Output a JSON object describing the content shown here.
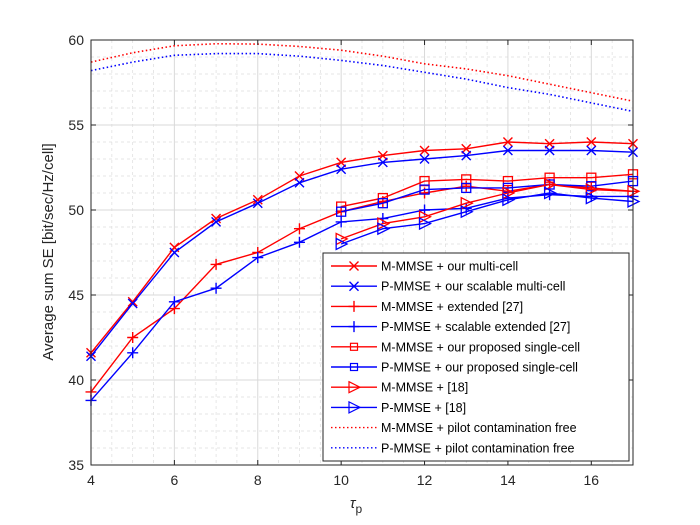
{
  "chart_data": {
    "type": "line",
    "title": "",
    "xlabel": "τ",
    "xlabel_subscript": "p",
    "ylabel": "Average sum SE [bit/sec/Hz/cell]",
    "xlim": [
      4,
      17
    ],
    "ylim": [
      35,
      60
    ],
    "xticks": [
      4,
      6,
      8,
      10,
      12,
      14,
      16
    ],
    "yticks": [
      35,
      40,
      45,
      50,
      55,
      60
    ],
    "grid": true,
    "minor_grid": true,
    "legend_position": "bottom-right",
    "series": [
      {
        "name": "M-MMSE + our multi-cell",
        "color": "#ff0000",
        "marker": "x",
        "linestyle": "solid",
        "x": [
          4,
          5,
          6,
          7,
          8,
          9,
          10,
          11,
          12,
          13,
          14,
          15,
          16,
          17
        ],
        "values": [
          41.6,
          44.6,
          47.8,
          49.5,
          50.6,
          52.0,
          52.8,
          53.2,
          53.5,
          53.6,
          54.0,
          53.9,
          54.0,
          53.9
        ]
      },
      {
        "name": "P-MMSE + our scalable multi-cell",
        "color": "#0000ff",
        "marker": "x",
        "linestyle": "solid",
        "x": [
          4,
          5,
          6,
          7,
          8,
          9,
          10,
          11,
          12,
          13,
          14,
          15,
          16,
          17
        ],
        "values": [
          41.4,
          44.5,
          47.5,
          49.3,
          50.4,
          51.6,
          52.4,
          52.8,
          53.0,
          53.2,
          53.5,
          53.5,
          53.5,
          53.4
        ]
      },
      {
        "name": "M-MMSE + extended [27]",
        "color": "#ff0000",
        "marker": "+",
        "linestyle": "solid",
        "x": [
          4,
          5,
          6,
          7,
          8,
          9,
          10,
          11,
          12,
          13,
          14,
          15,
          16,
          17
        ],
        "values": [
          39.3,
          42.5,
          44.2,
          46.8,
          47.5,
          48.9,
          49.9,
          50.5,
          51.0,
          51.4,
          51.1,
          51.5,
          51.3,
          51.1
        ]
      },
      {
        "name": "P-MMSE + scalable extended [27]",
        "color": "#0000ff",
        "marker": "+",
        "linestyle": "solid",
        "x": [
          4,
          5,
          6,
          7,
          8,
          9,
          10,
          11,
          12,
          13,
          14,
          15,
          16,
          17
        ],
        "values": [
          38.8,
          41.6,
          44.6,
          45.4,
          47.2,
          48.1,
          49.3,
          49.5,
          50.0,
          50.1,
          50.7,
          50.9,
          50.8,
          50.8
        ]
      },
      {
        "name": "M-MMSE + our proposed single-cell",
        "color": "#ff0000",
        "marker": "square",
        "linestyle": "solid",
        "x": [
          10,
          11,
          12,
          13,
          14,
          15,
          16,
          17
        ],
        "values": [
          50.2,
          50.7,
          51.7,
          51.8,
          51.7,
          51.9,
          51.9,
          52.1
        ]
      },
      {
        "name": "P-MMSE + our proposed single-cell",
        "color": "#0000ff",
        "marker": "square",
        "linestyle": "solid",
        "x": [
          10,
          11,
          12,
          13,
          14,
          15,
          16,
          17
        ],
        "values": [
          49.9,
          50.4,
          51.2,
          51.3,
          51.3,
          51.5,
          51.4,
          51.7
        ]
      },
      {
        "name": "M-MMSE + [18]",
        "color": "#ff0000",
        "marker": "triangle-right",
        "linestyle": "solid",
        "x": [
          10,
          11,
          12,
          13,
          14,
          15,
          16,
          17
        ],
        "values": [
          48.3,
          49.2,
          49.6,
          50.4,
          51.0,
          51.5,
          51.2,
          51.1
        ]
      },
      {
        "name": "P-MMSE + [18]",
        "color": "#0000ff",
        "marker": "triangle-right",
        "linestyle": "solid",
        "x": [
          10,
          11,
          12,
          13,
          14,
          15,
          16,
          17
        ],
        "values": [
          48.0,
          48.9,
          49.2,
          49.9,
          50.6,
          51.0,
          50.7,
          50.5
        ]
      },
      {
        "name": "M-MMSE + pilot contamination free",
        "color": "#ff0000",
        "marker": "none",
        "linestyle": "dotted",
        "x": [
          4,
          5,
          6,
          7,
          8,
          9,
          10,
          11,
          12,
          13,
          14,
          15,
          16,
          17
        ],
        "values": [
          58.7,
          59.25,
          59.66,
          59.78,
          59.76,
          59.62,
          59.4,
          59.05,
          58.6,
          58.3,
          57.9,
          57.4,
          56.9,
          56.4
        ]
      },
      {
        "name": "P-MMSE + pilot contamination free",
        "color": "#0000ff",
        "marker": "none",
        "linestyle": "dotted",
        "x": [
          4,
          5,
          6,
          7,
          8,
          9,
          10,
          11,
          12,
          13,
          14,
          15,
          16,
          17
        ],
        "values": [
          58.2,
          58.7,
          59.1,
          59.2,
          59.2,
          59.05,
          58.8,
          58.5,
          58.1,
          57.7,
          57.2,
          56.8,
          56.3,
          55.8
        ]
      }
    ]
  }
}
